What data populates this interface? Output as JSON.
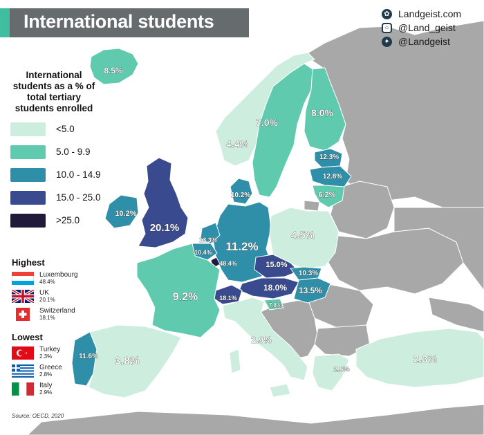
{
  "title": "International students",
  "social": [
    {
      "icon": "landgeist-logo-icon",
      "text": "Landgeist.com"
    },
    {
      "icon": "instagram-icon",
      "text": "@Land_geist"
    },
    {
      "icon": "twitter-icon",
      "text": "@Landgeist"
    }
  ],
  "legend": {
    "title_lines": [
      "International",
      "students as a % of",
      "total tertiary",
      "students enrolled"
    ],
    "bins": [
      {
        "label": "<5.0",
        "color": "#cdeede"
      },
      {
        "label": "5.0 - 9.9",
        "color": "#5fcaad"
      },
      {
        "label": "10.0 - 14.9",
        "color": "#2f8fa8"
      },
      {
        "label": "15.0 - 25.0",
        "color": "#3a4a8e"
      },
      {
        "label": ">25.0",
        "color": "#221a3a"
      }
    ]
  },
  "highest": {
    "title": "Highest",
    "items": [
      {
        "country": "Luxembourg",
        "value": "48.4%"
      },
      {
        "country": "UK",
        "value": "20.1%"
      },
      {
        "country": "Switzerland",
        "value": "18.1%"
      }
    ]
  },
  "lowest": {
    "title": "Lowest",
    "items": [
      {
        "country": "Turkey",
        "value": "2.3%"
      },
      {
        "country": "Greece",
        "value": "2.8%"
      },
      {
        "country": "Italy",
        "value": "2.9%"
      }
    ]
  },
  "source": "Source: OECD, 2020",
  "map_labels": [
    {
      "country": "Iceland",
      "text": "8.5%"
    },
    {
      "country": "Norway",
      "text": "4.4%"
    },
    {
      "country": "Sweden",
      "text": "7.0%"
    },
    {
      "country": "Finland",
      "text": "8.0%"
    },
    {
      "country": "Estonia",
      "text": "12.3%"
    },
    {
      "country": "Latvia",
      "text": "12.8%"
    },
    {
      "country": "Lithuania",
      "text": "6.2%"
    },
    {
      "country": "Denmark",
      "text": "10.2%"
    },
    {
      "country": "Ireland",
      "text": "10.2%"
    },
    {
      "country": "UK",
      "text": "20.1%"
    },
    {
      "country": "Netherlands",
      "text": "13.3%"
    },
    {
      "country": "Belgium",
      "text": "10.4%"
    },
    {
      "country": "Luxembourg",
      "text": "48.4%"
    },
    {
      "country": "Germany",
      "text": "11.2%"
    },
    {
      "country": "Poland",
      "text": "4.5%"
    },
    {
      "country": "Czechia",
      "text": "15.0%"
    },
    {
      "country": "Slovakia",
      "text": "10.3%"
    },
    {
      "country": "Austria",
      "text": "18.0%"
    },
    {
      "country": "Hungary",
      "text": "13.5%"
    },
    {
      "country": "Slovenia",
      "text": "7.8%"
    },
    {
      "country": "Switzerland",
      "text": "18.1%"
    },
    {
      "country": "France",
      "text": "9.2%"
    },
    {
      "country": "Italy",
      "text": "2.9%"
    },
    {
      "country": "Portugal",
      "text": "11.6%"
    },
    {
      "country": "Spain",
      "text": "3.8%"
    },
    {
      "country": "Greece",
      "text": "2.8%"
    },
    {
      "country": "Turkey",
      "text": "2.3%"
    }
  ]
}
